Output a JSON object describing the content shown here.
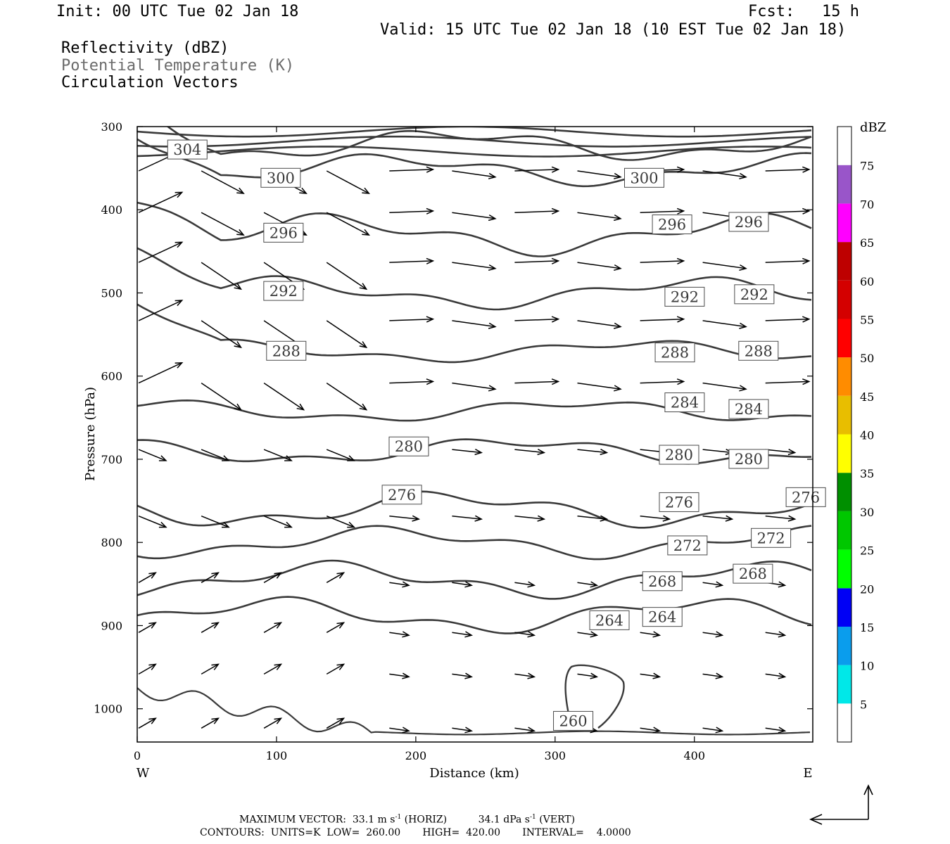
{
  "header": {
    "init": "Init: 00 UTC Tue 02 Jan 18",
    "fcst_label": "Fcst:",
    "fcst_value": "15 h",
    "valid": "Valid: 15 UTC Tue 02 Jan 18 (10 EST Tue 02 Jan 18)"
  },
  "fields": [
    {
      "label": "Reflectivity (dBZ)",
      "color": "#000000"
    },
    {
      "label": "Potential Temperature (K)",
      "color": "#6b6b6b"
    },
    {
      "label": "Circulation Vectors",
      "color": "#000000"
    }
  ],
  "footer": {
    "max_vector_label": "MAXIMUM VECTOR:",
    "horiz_value": "33.1 m s",
    "horiz_unit": "(HORIZ)",
    "vert_value": "34.1 dPa s",
    "vert_unit": "(VERT)",
    "exponent": "-1",
    "contours_line": "CONTOURS:  UNITS=K  LOW=  260.00       HIGH=  420.00       INTERVAL=    4.0000"
  },
  "chart_data": {
    "type": "cross-section",
    "xlabel": "Distance (km)",
    "ylabel": "Pressure (hPa)",
    "xlim": [
      0,
      485
    ],
    "ylim": [
      1040,
      300
    ],
    "x_ticks": [
      "0",
      "100",
      "200",
      "300",
      "400"
    ],
    "y_ticks": [
      "300",
      "400",
      "500",
      "600",
      "700",
      "800",
      "900",
      "1000"
    ],
    "x_ends": {
      "left": "W",
      "right": "E"
    },
    "colorbar": {
      "title": "dBZ",
      "levels": [
        "5",
        "10",
        "15",
        "20",
        "25",
        "30",
        "35",
        "40",
        "45",
        "50",
        "55",
        "60",
        "65",
        "70",
        "75"
      ],
      "colors": [
        "#ffffff",
        "#00e8e8",
        "#0a9ded",
        "#0000f5",
        "#00ff00",
        "#00c700",
        "#008f00",
        "#ffff00",
        "#e8be00",
        "#ff8c00",
        "#ff0000",
        "#d40000",
        "#be0000",
        "#ff00ff",
        "#9955c9",
        "#ffffff"
      ]
    },
    "contour_color": "#3a3a3a",
    "contours": [
      {
        "level": 304,
        "labels": [
          {
            "x": 36,
            "p": 328
          }
        ]
      },
      {
        "level": 300,
        "labels": [
          {
            "x": 103,
            "p": 362
          },
          {
            "x": 364,
            "p": 362
          }
        ]
      },
      {
        "level": 296,
        "labels": [
          {
            "x": 105,
            "p": 428
          },
          {
            "x": 384,
            "p": 418
          },
          {
            "x": 439,
            "p": 415
          }
        ]
      },
      {
        "level": 292,
        "labels": [
          {
            "x": 105,
            "p": 498
          },
          {
            "x": 393,
            "p": 505
          },
          {
            "x": 443,
            "p": 502
          }
        ]
      },
      {
        "level": 288,
        "labels": [
          {
            "x": 107,
            "p": 570
          },
          {
            "x": 386,
            "p": 572
          },
          {
            "x": 446,
            "p": 570
          }
        ]
      },
      {
        "level": 284,
        "labels": [
          {
            "x": 393,
            "p": 632
          },
          {
            "x": 439,
            "p": 640
          }
        ]
      },
      {
        "level": 280,
        "labels": [
          {
            "x": 195,
            "p": 685
          },
          {
            "x": 389,
            "p": 695
          },
          {
            "x": 439,
            "p": 700
          }
        ]
      },
      {
        "level": 276,
        "labels": [
          {
            "x": 190,
            "p": 743
          },
          {
            "x": 389,
            "p": 752
          },
          {
            "x": 480,
            "p": 746
          }
        ]
      },
      {
        "level": 272,
        "labels": [
          {
            "x": 395,
            "p": 804
          },
          {
            "x": 455,
            "p": 795
          }
        ]
      },
      {
        "level": 268,
        "labels": [
          {
            "x": 377,
            "p": 847
          },
          {
            "x": 442,
            "p": 838
          }
        ]
      },
      {
        "level": 264,
        "labels": [
          {
            "x": 339,
            "p": 894
          },
          {
            "x": 377,
            "p": 890
          }
        ]
      },
      {
        "level": 260,
        "labels": [
          {
            "x": 313,
            "p": 1015
          }
        ]
      }
    ]
  }
}
